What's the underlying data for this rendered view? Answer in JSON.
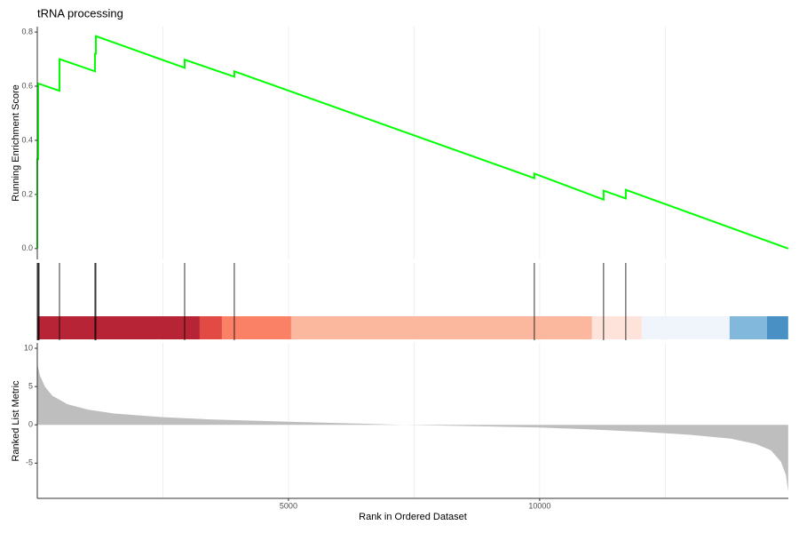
{
  "chart_data": [
    {
      "type": "line",
      "title": "tRNA processing",
      "ylabel": "Running Enrichment Score",
      "color": "#00ff00",
      "x": [
        0,
        0,
        18,
        18,
        442,
        442,
        1148,
        1148,
        1166,
        1166,
        2933,
        2933,
        3922,
        3922,
        9894,
        9894,
        11272,
        11272,
        11714,
        11714,
        14947
      ],
      "y": [
        0,
        0.33,
        0.33,
        0.61,
        0.583,
        0.7,
        0.655,
        0.72,
        0.72,
        0.785,
        0.668,
        0.698,
        0.635,
        0.655,
        0.26,
        0.277,
        0.181,
        0.214,
        0.185,
        0.217,
        0
      ],
      "xlim": [
        0,
        14950
      ],
      "ylim": [
        -0.04,
        0.82
      ],
      "yticks": [
        {
          "value": 0,
          "label": "0.0"
        },
        0.2,
        0.4,
        0.6,
        0.8
      ],
      "xgrid": [
        2500,
        5000,
        7500,
        10000,
        12500
      ]
    },
    {
      "type": "rug",
      "hits": [
        0,
        18,
        35,
        442,
        1148,
        1166,
        2933,
        3922,
        9894,
        11272,
        11714
      ],
      "xlim": [
        0,
        14950
      ],
      "band_edges": [
        0,
        3233,
        3675,
        5053,
        11042,
        12032,
        13781,
        14523,
        14947
      ],
      "band_colors": [
        "#b2182b",
        "#e0413a",
        "#fb7a5e",
        "#fcb49a",
        "#fde2d7",
        "#eff3fb",
        "#7ab4da",
        "#3f8bc2"
      ],
      "xgrid": [
        2500,
        5000,
        7500,
        10000,
        12500
      ]
    },
    {
      "type": "area",
      "ylabel": "Ranked List Metric",
      "xlabel": "Rank in Ordered Dataset",
      "color": "#bebebe",
      "x": [
        0,
        50,
        150,
        300,
        600,
        1000,
        1500,
        2500,
        3500,
        5000,
        6500,
        7300,
        8500,
        10000,
        11000,
        12000,
        13000,
        13800,
        14300,
        14600,
        14800,
        14900,
        14947
      ],
      "values": [
        8.0,
        6.5,
        5.0,
        3.8,
        2.7,
        2.0,
        1.5,
        1.0,
        0.7,
        0.4,
        0.15,
        0.0,
        -0.15,
        -0.35,
        -0.6,
        -0.9,
        -1.3,
        -1.8,
        -2.5,
        -3.3,
        -4.8,
        -6.5,
        -8.7
      ],
      "xlim": [
        0,
        14950
      ],
      "ylim": [
        -9.6,
        10.7
      ],
      "yticks": [
        -5,
        0,
        5,
        10
      ],
      "xticks": [
        5000,
        10000
      ],
      "xgrid": [
        2500,
        5000,
        7500,
        10000,
        12500
      ]
    }
  ]
}
